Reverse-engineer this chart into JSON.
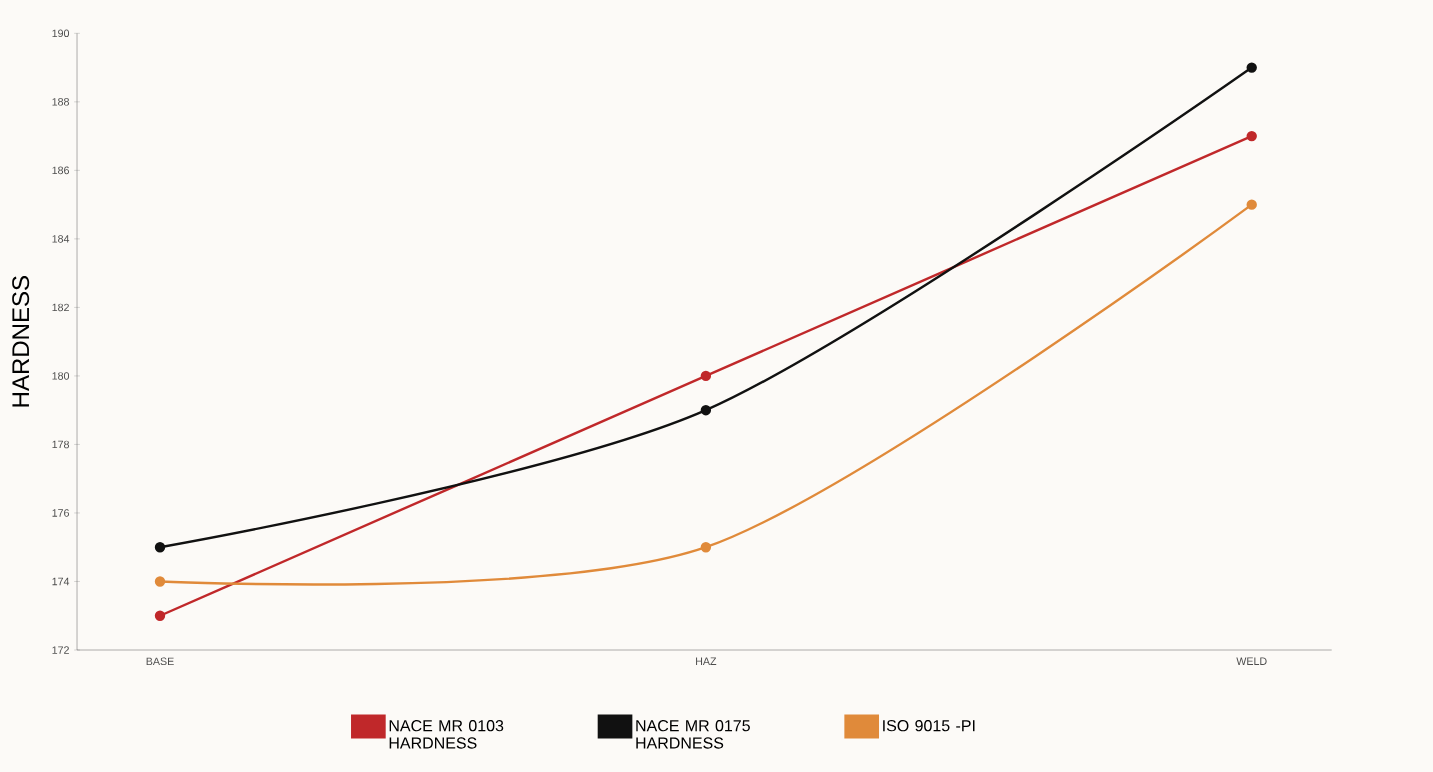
{
  "chart_data": {
    "type": "line",
    "ylabel": "HARDNESS",
    "categories": [
      "BASE",
      "HAZ",
      "WELD"
    ],
    "series": [
      {
        "name": "NACE MR 0103 HARDNESS",
        "color": "#c0282a",
        "values": [
          173,
          180,
          187
        ]
      },
      {
        "name": "NACE MR 0175 HARDNESS",
        "color": "#111111",
        "values": [
          175,
          179,
          189
        ]
      },
      {
        "name": "ISO 9015 -PI",
        "color": "#e08a3a",
        "values": [
          174,
          175,
          185
        ]
      }
    ],
    "ylim": [
      172,
      190
    ],
    "yticks": [
      172,
      174,
      176,
      178,
      180,
      182,
      184,
      186,
      188,
      190
    ],
    "legend": "bottom",
    "marker": "circle",
    "line_style": "solid",
    "grid": false
  }
}
